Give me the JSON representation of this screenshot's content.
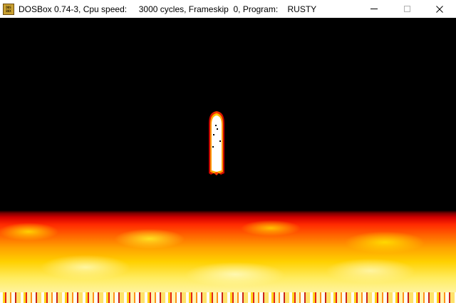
{
  "window": {
    "icon_label": "DOS BOX",
    "title": "DOSBox 0.74-3, Cpu speed:     3000 cycles, Frameskip  0, Program:    RUSTY",
    "minimize_icon": "minimize-icon",
    "maximize_icon": "maximize-icon",
    "close_icon": "close-icon"
  },
  "game": {
    "program": "RUSTY",
    "scene": "fire-effect",
    "colors": {
      "flame_dark": "#7a0000",
      "flame_red": "#ff2a00",
      "flame_orange": "#ffa000",
      "flame_yellow": "#ffd000",
      "flame_white": "#fff6b0",
      "background": "#000000"
    }
  }
}
